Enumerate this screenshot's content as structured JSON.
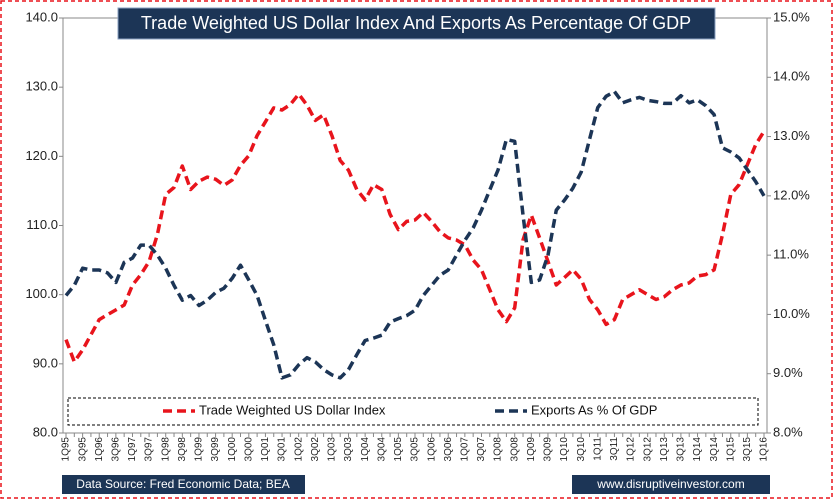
{
  "chart_data": {
    "type": "line",
    "title": "Trade Weighted US Dollar Index And Exports As Percentage Of GDP",
    "categories": [
      "1Q95",
      null,
      "3Q95",
      null,
      "1Q96",
      null,
      "3Q96",
      null,
      "1Q97",
      null,
      "3Q97",
      null,
      "1Q98",
      null,
      "3Q98",
      null,
      "1Q99",
      null,
      "3Q99",
      null,
      "1Q00",
      null,
      "3Q00",
      null,
      "1Q01",
      null,
      "3Q01",
      null,
      "1Q02",
      null,
      "3Q02",
      null,
      "1Q03",
      null,
      "3Q03",
      null,
      "1Q04",
      null,
      "3Q04",
      null,
      "1Q05",
      null,
      "3Q05",
      null,
      "1Q06",
      null,
      "3Q06",
      null,
      "1Q07",
      null,
      "3Q07",
      null,
      "1Q08",
      null,
      "3Q08",
      null,
      "1Q09",
      null,
      "3Q09",
      null,
      "1Q10",
      null,
      "3Q10",
      null,
      "1Q11",
      null,
      "3Q11",
      null,
      "1Q12",
      null,
      "3Q12",
      null,
      "1Q13",
      null,
      "3Q13",
      null,
      "1Q14",
      null,
      "3Q14",
      null,
      "1Q15",
      null,
      "3Q15",
      null,
      "1Q16"
    ],
    "series": [
      {
        "name": "Trade Weighted US Dollar Index",
        "color": "#e8141c",
        "axis": "y",
        "values": [
          93.5,
          90.3,
          92,
          94.2,
          96.4,
          97.1,
          97.8,
          98.5,
          101.4,
          102.9,
          104.8,
          108.7,
          114.5,
          115.5,
          118.6,
          115.2,
          116.4,
          117,
          116.7,
          115.8,
          116.6,
          118.7,
          120.1,
          123,
          125,
          127,
          126.7,
          127.5,
          129,
          127.4,
          125.2,
          126,
          123,
          119.4,
          118,
          115.2,
          113.7,
          115.9,
          115.2,
          111.6,
          109.4,
          110.6,
          110.8,
          111.9,
          110.6,
          109.1,
          108.2,
          107.9,
          107.2,
          105,
          103.6,
          100.7,
          97.8,
          96.1,
          98.1,
          107.9,
          111.5,
          108.2,
          104.8,
          101.4,
          102.5,
          103.6,
          102.2,
          99.3,
          97.8,
          95.7,
          96.4,
          99.3,
          100,
          100.7,
          100,
          99.3,
          99.7,
          100.7,
          101.4,
          101.7,
          102.7,
          102.9,
          103.6,
          108.7,
          114.5,
          115.9,
          118.8,
          121.7,
          123.6
        ]
      },
      {
        "name": "Exports As % Of GDP",
        "color": "#1c3556",
        "axis": "y2",
        "values": [
          10.32,
          10.49,
          10.78,
          10.75,
          10.75,
          10.7,
          10.54,
          10.88,
          10.95,
          11.17,
          11.17,
          11,
          10.78,
          10.49,
          10.24,
          10.32,
          10.15,
          10.24,
          10.37,
          10.44,
          10.61,
          10.83,
          10.58,
          10.32,
          9.9,
          9.49,
          8.93,
          8.98,
          9.15,
          9.27,
          9.2,
          9.07,
          8.98,
          8.93,
          9.07,
          9.32,
          9.56,
          9.6,
          9.65,
          9.87,
          9.93,
          9.98,
          10.07,
          10.32,
          10.49,
          10.66,
          10.75,
          11,
          11.25,
          11.46,
          11.76,
          12.1,
          12.44,
          12.95,
          12.92,
          11.68,
          10.54,
          10.58,
          11,
          11.76,
          11.93,
          12.13,
          12.4,
          12.95,
          13.49,
          13.68,
          13.76,
          13.57,
          13.62,
          13.66,
          13.61,
          13.59,
          13.56,
          13.56,
          13.69,
          13.57,
          13.62,
          13.52,
          13.37,
          12.81,
          12.74,
          12.64,
          12.44,
          12.24,
          12
        ]
      }
    ],
    "ylim": [
      80,
      140
    ],
    "yticks": [
      {
        "value": 80,
        "label": "80.0"
      },
      {
        "value": 90,
        "label": "90.0"
      },
      {
        "value": 100,
        "label": "100.0"
      },
      {
        "value": 110,
        "label": "110.0"
      },
      {
        "value": 120,
        "label": "120.0"
      },
      {
        "value": 130,
        "label": "130.0"
      },
      {
        "value": 140,
        "label": "140.0"
      }
    ],
    "y2lim": [
      8,
      15
    ],
    "y2ticks": [
      {
        "value": 8,
        "label": "8.0%"
      },
      {
        "value": 9,
        "label": "9.0%"
      },
      {
        "value": 10,
        "label": "10.0%"
      },
      {
        "value": 11,
        "label": "11.0%"
      },
      {
        "value": 12,
        "label": "12.0%"
      },
      {
        "value": 13,
        "label": "13.0%"
      },
      {
        "value": 14,
        "label": "14.0%"
      },
      {
        "value": 15,
        "label": "15.0%"
      }
    ],
    "grid": false,
    "legend": "bottom",
    "source": "Data Source: Fred Economic Data; BEA",
    "website": "www.disruptiveinvestor.com"
  }
}
